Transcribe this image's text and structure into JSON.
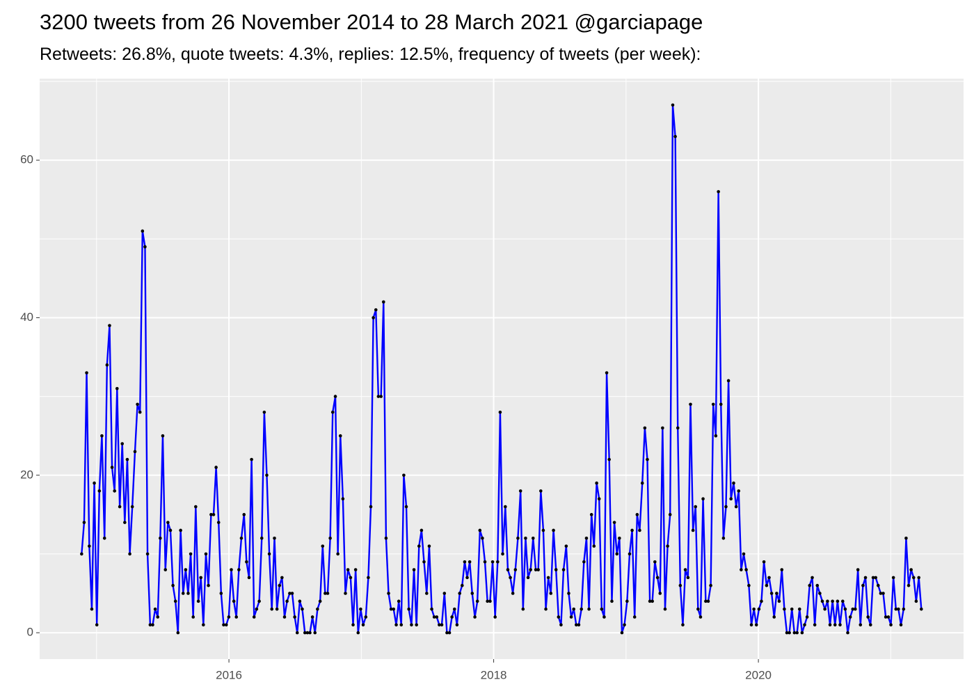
{
  "chart_data": {
    "type": "line",
    "title": "3200 tweets from 26 November 2014 to 28 March 2021 @garciapage",
    "subtitle": "Retweets: 26.8%, quote tweets: 4.3%, replies: 12.5%, frequency of tweets (per week):",
    "x": [
      2014.887,
      2014.906,
      2014.925,
      2014.945,
      2014.964,
      2014.983,
      2015.002,
      2015.021,
      2015.04,
      2015.06,
      2015.079,
      2015.098,
      2015.117,
      2015.136,
      2015.155,
      2015.175,
      2015.194,
      2015.213,
      2015.232,
      2015.251,
      2015.27,
      2015.29,
      2015.309,
      2015.328,
      2015.347,
      2015.366,
      2015.385,
      2015.405,
      2015.424,
      2015.443,
      2015.462,
      2015.481,
      2015.5,
      2015.52,
      2015.539,
      2015.558,
      2015.577,
      2015.596,
      2015.615,
      2015.635,
      2015.654,
      2015.673,
      2015.692,
      2015.711,
      2015.73,
      2015.749,
      2015.769,
      2015.788,
      2015.807,
      2015.826,
      2015.845,
      2015.865,
      2015.884,
      2015.903,
      2015.922,
      2015.941,
      2015.96,
      2015.98,
      2015.999,
      2016.018,
      2016.037,
      2016.056,
      2016.075,
      2016.094,
      2016.114,
      2016.133,
      2016.152,
      2016.171,
      2016.19,
      2016.209,
      2016.229,
      2016.248,
      2016.267,
      2016.286,
      2016.305,
      2016.324,
      2016.344,
      2016.363,
      2016.382,
      2016.401,
      2016.42,
      2016.439,
      2016.459,
      2016.478,
      2016.497,
      2016.516,
      2016.535,
      2016.554,
      2016.574,
      2016.593,
      2016.612,
      2016.631,
      2016.65,
      2016.669,
      2016.689,
      2016.708,
      2016.727,
      2016.746,
      2016.765,
      2016.784,
      2016.804,
      2016.823,
      2016.842,
      2016.861,
      2016.88,
      2016.899,
      2016.919,
      2016.938,
      2016.957,
      2016.976,
      2016.995,
      2017.014,
      2017.034,
      2017.053,
      2017.072,
      2017.091,
      2017.11,
      2017.129,
      2017.149,
      2017.168,
      2017.187,
      2017.206,
      2017.225,
      2017.244,
      2017.264,
      2017.283,
      2017.302,
      2017.321,
      2017.34,
      2017.359,
      2017.379,
      2017.398,
      2017.417,
      2017.436,
      2017.455,
      2017.474,
      2017.494,
      2017.513,
      2017.532,
      2017.551,
      2017.57,
      2017.589,
      2017.608,
      2017.628,
      2017.647,
      2017.666,
      2017.685,
      2017.704,
      2017.723,
      2017.743,
      2017.762,
      2017.781,
      2017.8,
      2017.819,
      2017.838,
      2017.858,
      2017.877,
      2017.896,
      2017.915,
      2017.934,
      2017.953,
      2017.973,
      2017.992,
      2018.011,
      2018.03,
      2018.049,
      2018.068,
      2018.088,
      2018.107,
      2018.126,
      2018.145,
      2018.164,
      2018.183,
      2018.203,
      2018.222,
      2018.241,
      2018.26,
      2018.279,
      2018.298,
      2018.318,
      2018.337,
      2018.356,
      2018.375,
      2018.394,
      2018.413,
      2018.432,
      2018.452,
      2018.471,
      2018.49,
      2018.509,
      2018.528,
      2018.548,
      2018.567,
      2018.586,
      2018.605,
      2018.624,
      2018.643,
      2018.663,
      2018.682,
      2018.701,
      2018.72,
      2018.739,
      2018.758,
      2018.778,
      2018.797,
      2018.816,
      2018.835,
      2018.854,
      2018.873,
      2018.893,
      2018.912,
      2018.931,
      2018.95,
      2018.969,
      2018.988,
      2019.008,
      2019.027,
      2019.046,
      2019.065,
      2019.084,
      2019.103,
      2019.123,
      2019.142,
      2019.161,
      2019.18,
      2019.199,
      2019.218,
      2019.238,
      2019.257,
      2019.276,
      2019.295,
      2019.314,
      2019.333,
      2019.353,
      2019.372,
      2019.391,
      2019.41,
      2019.429,
      2019.448,
      2019.468,
      2019.487,
      2019.506,
      2019.525,
      2019.544,
      2019.563,
      2019.582,
      2019.602,
      2019.621,
      2019.64,
      2019.659,
      2019.678,
      2019.698,
      2019.717,
      2019.736,
      2019.755,
      2019.774,
      2019.793,
      2019.813,
      2019.832,
      2019.851,
      2019.87,
      2019.889,
      2019.908,
      2019.928,
      2019.947,
      2019.966,
      2019.985,
      2020.004,
      2020.023,
      2020.042,
      2020.062,
      2020.081,
      2020.1,
      2020.119,
      2020.138,
      2020.157,
      2020.177,
      2020.196,
      2020.215,
      2020.234,
      2020.253,
      2020.272,
      2020.292,
      2020.311,
      2020.33,
      2020.349,
      2020.368,
      2020.387,
      2020.407,
      2020.426,
      2020.445,
      2020.464,
      2020.483,
      2020.502,
      2020.522,
      2020.541,
      2020.56,
      2020.579,
      2020.598,
      2020.617,
      2020.637,
      2020.656,
      2020.675,
      2020.694,
      2020.713,
      2020.732,
      2020.752,
      2020.771,
      2020.79,
      2020.809,
      2020.828,
      2020.847,
      2020.867,
      2020.886,
      2020.905,
      2020.924,
      2020.943,
      2020.962,
      2020.982,
      2021.001,
      2021.02,
      2021.039,
      2021.058,
      2021.077,
      2021.097,
      2021.116,
      2021.135,
      2021.154,
      2021.173,
      2021.192,
      2021.212,
      2021.231
    ],
    "values": [
      10,
      14,
      33,
      11,
      3,
      19,
      1,
      18,
      25,
      12,
      34,
      39,
      21,
      18,
      31,
      16,
      24,
      14,
      22,
      10,
      16,
      23,
      29,
      28,
      51,
      49,
      10,
      1,
      1,
      3,
      2,
      12,
      25,
      8,
      14,
      13,
      6,
      4,
      0,
      13,
      5,
      8,
      5,
      10,
      2,
      16,
      4,
      7,
      1,
      10,
      6,
      15,
      15,
      21,
      14,
      5,
      1,
      1,
      2,
      8,
      4,
      2,
      8,
      12,
      15,
      9,
      7,
      22,
      2,
      3,
      4,
      12,
      28,
      20,
      10,
      3,
      12,
      3,
      6,
      7,
      2,
      4,
      5,
      5,
      2,
      0,
      4,
      3,
      0,
      0,
      0,
      2,
      0,
      3,
      4,
      11,
      5,
      5,
      12,
      28,
      30,
      10,
      25,
      17,
      5,
      8,
      7,
      1,
      8,
      0,
      3,
      1,
      2,
      7,
      16,
      40,
      41,
      30,
      30,
      42,
      12,
      5,
      3,
      3,
      1,
      4,
      1,
      20,
      16,
      3,
      1,
      8,
      1,
      11,
      13,
      9,
      5,
      11,
      3,
      2,
      2,
      1,
      1,
      5,
      0,
      0,
      2,
      3,
      1,
      5,
      6,
      9,
      7,
      9,
      5,
      2,
      4,
      13,
      12,
      9,
      4,
      4,
      9,
      2,
      9,
      28,
      10,
      16,
      8,
      7,
      5,
      8,
      12,
      18,
      3,
      12,
      7,
      8,
      12,
      8,
      8,
      18,
      13,
      3,
      7,
      5,
      13,
      8,
      2,
      1,
      8,
      11,
      5,
      2,
      3,
      1,
      1,
      3,
      9,
      12,
      3,
      15,
      11,
      19,
      17,
      3,
      2,
      33,
      22,
      4,
      14,
      10,
      12,
      0,
      1,
      4,
      10,
      13,
      2,
      15,
      13,
      19,
      26,
      22,
      4,
      4,
      9,
      7,
      5,
      26,
      3,
      11,
      15,
      67,
      63,
      26,
      6,
      1,
      8,
      7,
      29,
      13,
      16,
      3,
      2,
      17,
      4,
      4,
      6,
      29,
      25,
      56,
      29,
      12,
      16,
      32,
      17,
      19,
      16,
      18,
      8,
      10,
      8,
      6,
      1,
      3,
      1,
      3,
      4,
      9,
      6,
      7,
      5,
      2,
      5,
      4,
      8,
      3,
      0,
      0,
      3,
      0,
      0,
      3,
      0,
      1,
      2,
      6,
      7,
      1,
      6,
      5,
      4,
      3,
      4,
      1,
      4,
      1,
      4,
      1,
      4,
      3,
      0,
      2,
      3,
      3,
      8,
      1,
      6,
      7,
      2,
      1,
      7,
      7,
      6,
      5,
      5,
      2,
      2,
      1,
      7,
      3,
      3,
      1,
      3,
      12,
      6,
      8,
      7,
      4,
      7,
      3
    ],
    "color": "#0000ff",
    "marker_color": "#000000",
    "xlim": [
      2014.57,
      2021.55
    ],
    "xticks": [
      2016,
      2018,
      2020
    ],
    "ylim": [
      -3.35,
      70.35
    ],
    "yticks": [
      0,
      20,
      40,
      60
    ],
    "grid": true
  }
}
